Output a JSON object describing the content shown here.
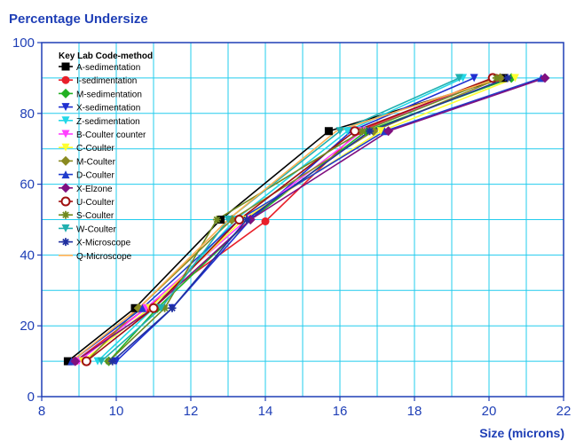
{
  "chart_data": {
    "type": "line",
    "title": "Percentage Undersize",
    "xlabel": "Size (microns)",
    "ylabel": "",
    "xlim": [
      8,
      22
    ],
    "ylim": [
      0,
      100
    ],
    "xticks": [
      "8",
      "10",
      "12",
      "14",
      "16",
      "18",
      "20",
      "22"
    ],
    "yticks": [
      "0",
      "20",
      "40",
      "60",
      "80",
      "100"
    ],
    "grid": true,
    "legend_title": "Key Lab Code-method",
    "legend_position": "top-left",
    "series": [
      {
        "name": "A-sedimentation",
        "color": "#000000",
        "marker": "square",
        "points": [
          [
            8.7,
            10
          ],
          [
            10.5,
            25
          ],
          [
            12.8,
            50
          ],
          [
            15.7,
            75
          ],
          [
            20.4,
            90
          ]
        ]
      },
      {
        "name": "I-sedimentation",
        "color": "#e8202a",
        "marker": "circle",
        "points": [
          [
            8.9,
            10
          ],
          [
            10.8,
            25
          ],
          [
            14.0,
            49.5
          ],
          [
            16.5,
            75
          ],
          [
            20.2,
            90
          ]
        ]
      },
      {
        "name": "M-sedimentation",
        "color": "#22b022",
        "marker": "diamond",
        "points": [
          [
            9.8,
            10
          ],
          [
            11.1,
            25
          ],
          [
            13.6,
            50
          ],
          [
            16.7,
            75
          ],
          [
            20.6,
            90
          ]
        ]
      },
      {
        "name": "X-sedimentation",
        "color": "#1f2fd0",
        "marker": "triangle-down",
        "points": [
          [
            10.0,
            10
          ],
          [
            11.5,
            25
          ],
          [
            13.6,
            50
          ],
          [
            16.3,
            75
          ],
          [
            19.6,
            90
          ]
        ]
      },
      {
        "name": "Z-sedimentation",
        "color": "#22d8e8",
        "marker": "triangle-down",
        "points": [
          [
            9.5,
            10
          ],
          [
            11.0,
            25
          ],
          [
            13.2,
            50
          ],
          [
            16.2,
            75
          ],
          [
            19.3,
            90
          ]
        ]
      },
      {
        "name": "B-Coulter counter",
        "color": "#ff40ff",
        "marker": "triangle-down",
        "points": [
          [
            9.0,
            10
          ],
          [
            10.8,
            25
          ],
          [
            13.5,
            50
          ],
          [
            16.6,
            75
          ],
          [
            20.1,
            90
          ]
        ]
      },
      {
        "name": "C-Coulter",
        "color": "#ffff30",
        "marker": "triangle-down",
        "points": [
          [
            9.1,
            10
          ],
          [
            10.9,
            25
          ],
          [
            13.4,
            50
          ],
          [
            17.1,
            75
          ],
          [
            20.7,
            90
          ]
        ]
      },
      {
        "name": "M-Coulter",
        "color": "#8a8a20",
        "marker": "diamond",
        "points": [
          [
            9.2,
            10
          ],
          [
            10.6,
            25
          ],
          [
            13.1,
            50
          ],
          [
            16.9,
            75
          ],
          [
            20.3,
            90
          ]
        ]
      },
      {
        "name": "D-Coulter",
        "color": "#1f3ccc",
        "marker": "triangle-up",
        "points": [
          [
            8.8,
            10
          ],
          [
            10.7,
            25
          ],
          [
            13.3,
            50
          ],
          [
            17.2,
            75
          ],
          [
            21.4,
            90
          ]
        ]
      },
      {
        "name": "X-Elzone",
        "color": "#801080",
        "marker": "diamond",
        "points": [
          [
            8.9,
            10
          ],
          [
            11.0,
            25
          ],
          [
            13.6,
            50
          ],
          [
            17.3,
            75
          ],
          [
            21.5,
            90
          ]
        ]
      },
      {
        "name": "U-Coulter",
        "color": "#a01010",
        "marker": "circle-open",
        "points": [
          [
            9.2,
            10
          ],
          [
            11.0,
            25
          ],
          [
            13.3,
            50
          ],
          [
            16.4,
            75
          ],
          [
            20.1,
            90
          ]
        ]
      },
      {
        "name": "S-Coulter",
        "color": "#708a20",
        "marker": "star",
        "points": [
          [
            9.8,
            10
          ],
          [
            11.3,
            25
          ],
          [
            12.7,
            50
          ],
          [
            16.6,
            75
          ],
          [
            20.2,
            90
          ]
        ]
      },
      {
        "name": "W-Coulter",
        "color": "#20b0b0",
        "marker": "triangle-down",
        "points": [
          [
            9.6,
            10
          ],
          [
            11.2,
            25
          ],
          [
            13.0,
            50
          ],
          [
            16.0,
            75
          ],
          [
            19.2,
            90
          ]
        ]
      },
      {
        "name": "X-Microscope",
        "color": "#2030a0",
        "marker": "star",
        "points": [
          [
            9.9,
            10
          ],
          [
            11.5,
            25
          ],
          [
            13.5,
            50
          ],
          [
            16.8,
            75
          ],
          [
            20.5,
            90
          ]
        ]
      },
      {
        "name": "Q-Microscope",
        "color": "#ffb050",
        "marker": "none",
        "points": [
          [
            8.8,
            10
          ],
          [
            10.6,
            25
          ],
          [
            13.0,
            50
          ],
          [
            15.9,
            75
          ],
          [
            20.3,
            90
          ]
        ]
      }
    ]
  }
}
